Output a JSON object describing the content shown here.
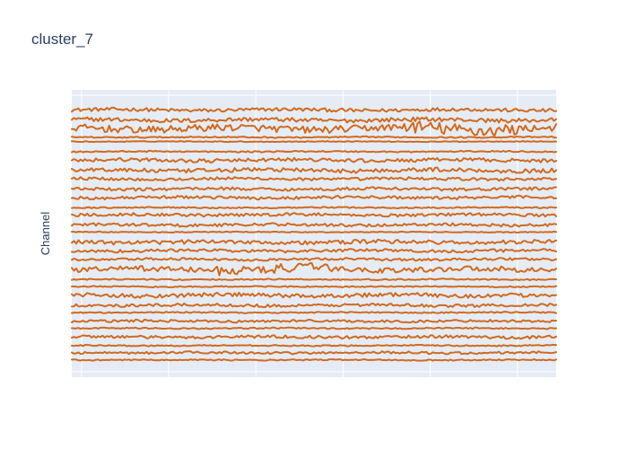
{
  "chart_data": {
    "type": "line",
    "title": "cluster_7",
    "xlabel": "",
    "ylabel": "Channel",
    "grid": true,
    "show_tick_labels": false,
    "x_range": [
      0,
      1
    ],
    "y_range": [
      0,
      1
    ],
    "background_color": "#e5ecf6",
    "line_color": "#d2691e",
    "series": [
      {
        "level": 0.93,
        "amplitude": 0.006,
        "style": "noisy"
      },
      {
        "level": 0.895,
        "amplitude": 0.007,
        "style": "noisy"
      },
      {
        "level": 0.865,
        "amplitude": 0.012,
        "style": "bursty"
      },
      {
        "level": 0.835,
        "amplitude": 0.003,
        "style": "smooth"
      },
      {
        "level": 0.82,
        "amplitude": 0.002,
        "style": "smooth"
      },
      {
        "level": 0.785,
        "amplitude": 0.003,
        "style": "smooth"
      },
      {
        "level": 0.755,
        "amplitude": 0.006,
        "style": "noisy"
      },
      {
        "level": 0.72,
        "amplitude": 0.007,
        "style": "noisy"
      },
      {
        "level": 0.69,
        "amplitude": 0.005,
        "style": "noisy"
      },
      {
        "level": 0.655,
        "amplitude": 0.005,
        "style": "noisy"
      },
      {
        "level": 0.625,
        "amplitude": 0.005,
        "style": "noisy"
      },
      {
        "level": 0.59,
        "amplitude": 0.003,
        "style": "smooth"
      },
      {
        "level": 0.565,
        "amplitude": 0.005,
        "style": "noisy"
      },
      {
        "level": 0.53,
        "amplitude": 0.005,
        "style": "noisy"
      },
      {
        "level": 0.505,
        "amplitude": 0.002,
        "style": "smooth"
      },
      {
        "level": 0.47,
        "amplitude": 0.007,
        "style": "noisy"
      },
      {
        "level": 0.44,
        "amplitude": 0.005,
        "style": "noisy"
      },
      {
        "level": 0.41,
        "amplitude": 0.004,
        "style": "noisy"
      },
      {
        "level": 0.375,
        "amplitude": 0.009,
        "style": "bursty"
      },
      {
        "level": 0.34,
        "amplitude": 0.003,
        "style": "smooth"
      },
      {
        "level": 0.315,
        "amplitude": 0.003,
        "style": "smooth"
      },
      {
        "level": 0.285,
        "amplitude": 0.007,
        "style": "noisy"
      },
      {
        "level": 0.25,
        "amplitude": 0.005,
        "style": "noisy"
      },
      {
        "level": 0.225,
        "amplitude": 0.003,
        "style": "smooth"
      },
      {
        "level": 0.195,
        "amplitude": 0.004,
        "style": "noisy"
      },
      {
        "level": 0.17,
        "amplitude": 0.003,
        "style": "smooth"
      },
      {
        "level": 0.14,
        "amplitude": 0.005,
        "style": "noisy"
      },
      {
        "level": 0.11,
        "amplitude": 0.003,
        "style": "smooth"
      },
      {
        "level": 0.085,
        "amplitude": 0.004,
        "style": "noisy"
      },
      {
        "level": 0.06,
        "amplitude": 0.003,
        "style": "smooth"
      }
    ]
  }
}
